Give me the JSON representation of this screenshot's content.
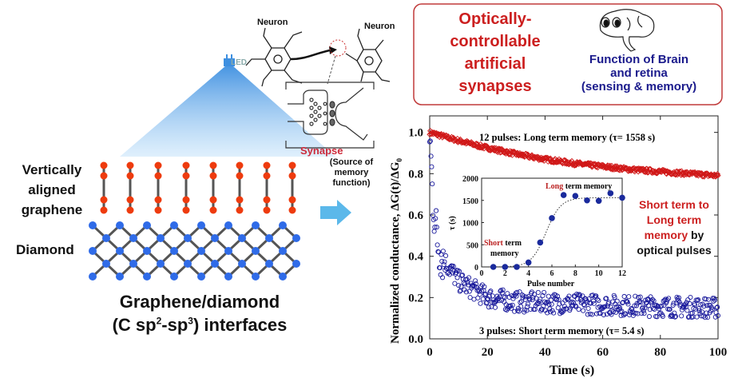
{
  "left": {
    "led_label": "LED",
    "graphene_label": [
      "Vertically",
      "aligned",
      "graphene"
    ],
    "diamond_label": "Diamond",
    "interface_title": "Graphene/diamond",
    "interface_sub": {
      "pre": "(C sp",
      "sup1": "2",
      "mid": "-sp",
      "sup2": "3",
      "post": ")  interfaces"
    }
  },
  "neuron": {
    "neuron_left": "Neuron",
    "neuron_right": "Neuron",
    "synapse_label": "Synapse",
    "synapse_note": [
      "(Source of",
      "memory",
      "function)"
    ]
  },
  "callout": {
    "title": [
      "Optically-",
      "controllable",
      "artificial",
      "synapses"
    ],
    "brain_text": [
      "Function of Brain",
      "and retina",
      "(sensing & memory)"
    ]
  },
  "colors": {
    "red": "#cc1f1f",
    "blue": "#1a1a8c",
    "led_blue": "#3d8fe0",
    "graphene_red": "#ee3b0e",
    "diamond_blue": "#2f6be8",
    "frame": "#c03a3a"
  },
  "chart_data": [
    {
      "type": "scatter",
      "xlabel": "Time (s)",
      "ylabel": "Normalized conductance, ΔG(t)/ΔG",
      "ylabel_sub": "0",
      "xlim": [
        0,
        100
      ],
      "ylim": [
        0,
        1.08
      ],
      "xticks": [
        "0",
        "20",
        "40",
        "60",
        "80",
        "100"
      ],
      "yticks": [
        "0.0",
        "0.2",
        "0.4",
        "0.6",
        "0.8",
        "1.0"
      ],
      "series": [
        {
          "name": "12 pulses",
          "color": "#d01818",
          "marker": "diamond",
          "x": [
            0,
            10,
            20,
            30,
            40,
            50,
            60,
            70,
            80,
            90,
            100
          ],
          "y": [
            1.0,
            0.96,
            0.925,
            0.895,
            0.87,
            0.85,
            0.835,
            0.82,
            0.81,
            0.8,
            0.79
          ]
        },
        {
          "name": "3 pulses",
          "color": "#1a1a9c",
          "marker": "circle",
          "x": [
            0,
            1,
            2,
            3,
            5,
            10,
            15,
            20,
            30,
            50,
            70,
            100
          ],
          "y": [
            1.0,
            0.7,
            0.55,
            0.45,
            0.38,
            0.28,
            0.24,
            0.2,
            0.18,
            0.17,
            0.16,
            0.15
          ]
        }
      ],
      "annotations": {
        "long": "12 pulses:  Long term memory (τ= 1558 s)",
        "short": "3 pulses:  Short term memory (τ= 5.4 s)",
        "side": [
          {
            "text": "Short term to",
            "color": "#cc1f1f"
          },
          {
            "text": "Long term",
            "color": "#cc1f1f"
          },
          {
            "text": "memory",
            "color": "#cc1f1f"
          },
          {
            "text": " by",
            "color": "#111"
          },
          {
            "text": "optical pulses",
            "color": "#111"
          }
        ]
      }
    },
    {
      "type": "scatter",
      "xlabel": "Pulse number",
      "ylabel": "τ (s)",
      "xlim": [
        0,
        12
      ],
      "ylim": [
        0,
        2000
      ],
      "xticks": [
        "0",
        "2",
        "4",
        "6",
        "8",
        "10",
        "12"
      ],
      "yticks": [
        "0",
        "500",
        "1000",
        "1500",
        "2000"
      ],
      "x": [
        1,
        2,
        3,
        4,
        5,
        6,
        7,
        8,
        9,
        10,
        11,
        12
      ],
      "y": [
        0,
        0,
        0,
        100,
        550,
        1100,
        1620,
        1600,
        1500,
        1490,
        1660,
        1560
      ],
      "annotations": {
        "long_red": "Long",
        "long_rest": " term memory",
        "short_red": "Short",
        "short_rest": " term",
        "short_line2": "memory"
      }
    }
  ]
}
